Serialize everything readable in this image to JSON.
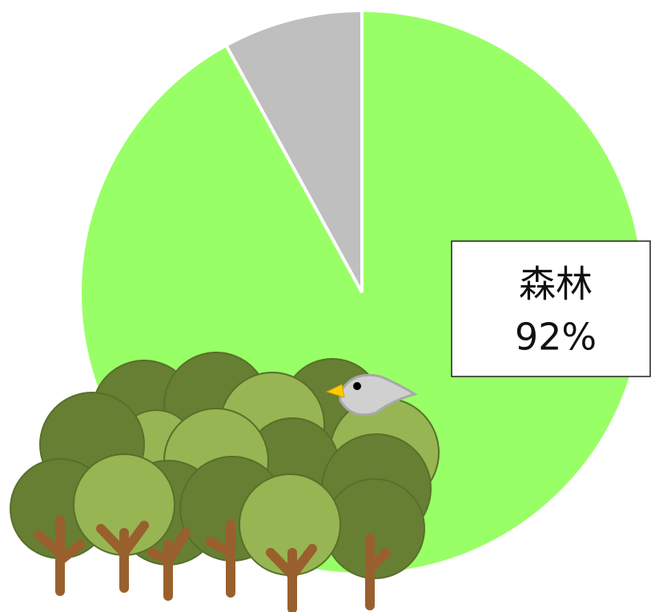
{
  "chart_data": {
    "type": "pie",
    "categories": [
      "森林",
      null
    ],
    "values": [
      92,
      8
    ],
    "value_labels": [
      "92%",
      null
    ],
    "colors": [
      "#99ff66",
      "#bfbfbf"
    ]
  }
}
